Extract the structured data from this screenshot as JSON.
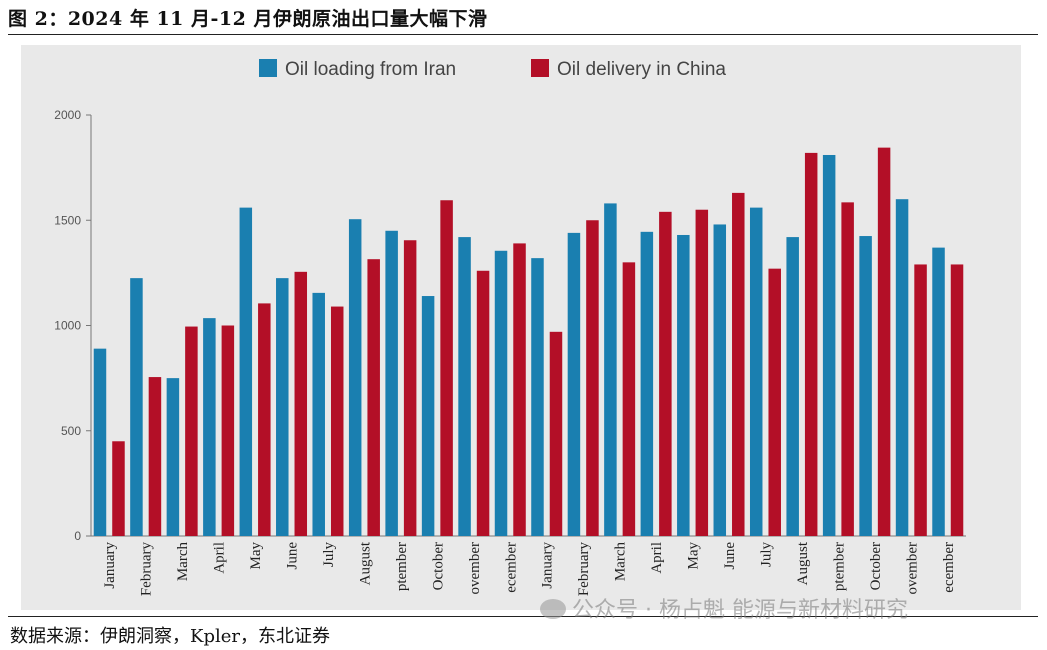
{
  "figure_title": "图 2：2024 年 11 月-12 月伊朗原油出口量大幅下滑",
  "source_note": "数据来源：伊朗洞察，Kpler，东北证券",
  "watermark": "公众号 · 杨占魁 能源与新材料研究",
  "colors": {
    "iran": "#1a7fb0",
    "china": "#b30f27",
    "panel": "#e9e9e9",
    "axis": "#777777"
  },
  "chart_data": {
    "type": "bar",
    "title": "",
    "xlabel": "",
    "ylabel": "",
    "ylim": [
      0,
      2000
    ],
    "yticks": [
      0,
      500,
      1000,
      1500,
      2000
    ],
    "legend_position": "top-center",
    "categories": [
      "January",
      "February",
      "March",
      "April",
      "May",
      "June",
      "July",
      "August",
      "September",
      "October",
      "November",
      "December",
      "January",
      "February",
      "March",
      "April",
      "May",
      "June",
      "July",
      "August",
      "September",
      "October",
      "November",
      "December"
    ],
    "category_labels_shown": [
      "January",
      "February",
      "March",
      "April",
      "May",
      "June",
      "July",
      "August",
      "ptember",
      "October",
      "ovember",
      "ecember",
      "January",
      "February",
      "March",
      "April",
      "May",
      "June",
      "July",
      "August",
      "ptember",
      "October",
      "ovember",
      "ecember"
    ],
    "series": [
      {
        "name": "Oil loading from Iran",
        "color": "#1a7fb0",
        "values": [
          890,
          1225,
          750,
          1035,
          1560,
          1225,
          1155,
          1505,
          1450,
          1140,
          1420,
          1355,
          1320,
          1440,
          1580,
          1445,
          1430,
          1480,
          1560,
          1420,
          1810,
          1425,
          1600,
          1370
        ]
      },
      {
        "name": "Oil delivery in China",
        "color": "#b30f27",
        "values": [
          450,
          755,
          995,
          1000,
          1105,
          1255,
          1090,
          1315,
          1405,
          1595,
          1260,
          1390,
          970,
          1500,
          1300,
          1540,
          1550,
          1630,
          1270,
          1820,
          1585,
          1845,
          1290,
          1290
        ]
      }
    ]
  }
}
